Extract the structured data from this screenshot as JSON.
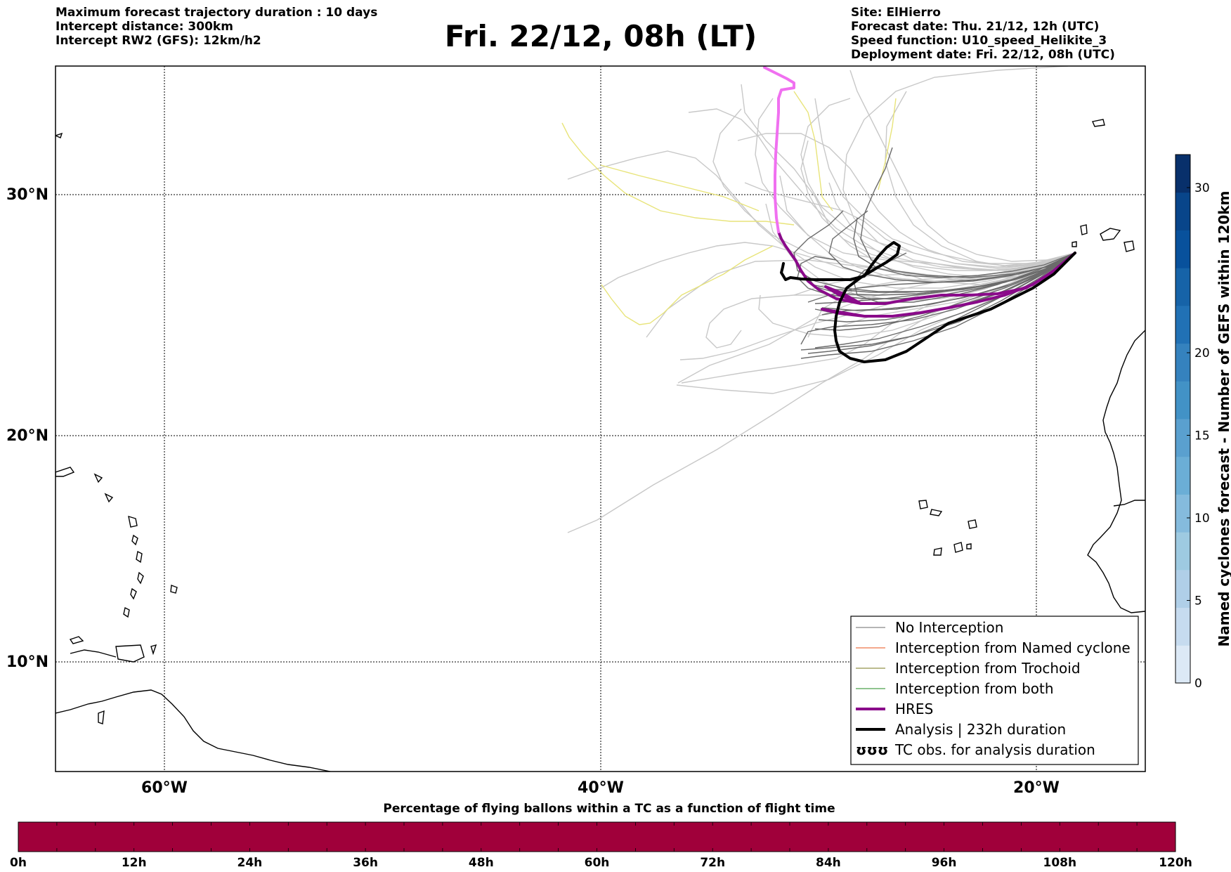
{
  "header": {
    "left_lines": [
      "Maximum forecast trajectory duration : 10 days",
      "Intercept distance: 300km",
      "Intercept RW2 (GFS):  12km/h2"
    ],
    "title": "Fri. 22/12, 08h (LT)",
    "right_lines": [
      "Site: ElHierro",
      "Forecast date: Thu. 21/12, 12h (UTC)",
      "Speed function: U10_speed_Helikite_3",
      "Deployment date: Fri. 22/12, 08h (UTC)"
    ]
  },
  "map": {
    "lon_range": [
      -65,
      -15
    ],
    "lat_range": [
      5.4,
      34.7
    ],
    "lat_lines": [
      30,
      20,
      10
    ],
    "lon_lines": [
      -60,
      -40,
      -20
    ],
    "lat_labels": [
      "30°N",
      "20°N",
      "10°N"
    ],
    "lon_labels": [
      "60°W",
      "40°W",
      "20°W"
    ],
    "site": {
      "name": "ElHierro",
      "lon": -18.0,
      "lat": 27.7
    },
    "colors": {
      "no_interception": "#6b6b6b",
      "no_interception_light": "#c8c8c8",
      "named_cyclone": "#e8501a",
      "trochoid": "#7a7a1e",
      "both": "#1f8a1f",
      "yellow_tracks": "#e8e47a",
      "hres": "#8a0a8a",
      "hres_pink": "#f070f0",
      "analysis": "#000000",
      "coast": "#000000"
    }
  },
  "legend": {
    "items": [
      {
        "label": "No Interception",
        "color": "#6b6b6b",
        "width": 1
      },
      {
        "label": "Interception from Named cyclone",
        "color": "#e8501a",
        "width": 1
      },
      {
        "label": "Interception from Trochoid",
        "color": "#7a7a1e",
        "width": 1
      },
      {
        "label": "Interception from both",
        "color": "#1f8a1f",
        "width": 1
      },
      {
        "label": "HRES",
        "color": "#8a0a8a",
        "width": 4
      },
      {
        "label": "Analysis | 232h duration",
        "color": "#000000",
        "width": 4
      },
      {
        "label": "TC obs. for analysis duration",
        "color": "#000000",
        "width": 0,
        "symbol": "ʊʊʊ"
      }
    ]
  },
  "colorbar": {
    "title": "Named cyclones forecast - Number of GEFS within 120km",
    "min": 0,
    "max": 32,
    "ticks": [
      0,
      5,
      10,
      15,
      20,
      30
    ],
    "tick_labels": [
      "0",
      "5",
      "10",
      "15",
      "20",
      "30"
    ],
    "colors": [
      "#dce9f6",
      "#c6dbef",
      "#b0cfe8",
      "#9ecae1",
      "#85bbdd",
      "#6baed6",
      "#5aa0cf",
      "#4292c6",
      "#3582be",
      "#2171b5",
      "#1663a8",
      "#08519c",
      "#08458a",
      "#08306b"
    ]
  },
  "timebar": {
    "title": "Percentage of flying ballons within a TC as a function of flight time",
    "tick_labels": [
      "0h",
      "12h",
      "24h",
      "36h",
      "48h",
      "60h",
      "72h",
      "84h",
      "96h",
      "108h",
      "120h"
    ],
    "hours_max": 120,
    "fill_color": "#a0003a",
    "percent_in_tc": 0
  }
}
